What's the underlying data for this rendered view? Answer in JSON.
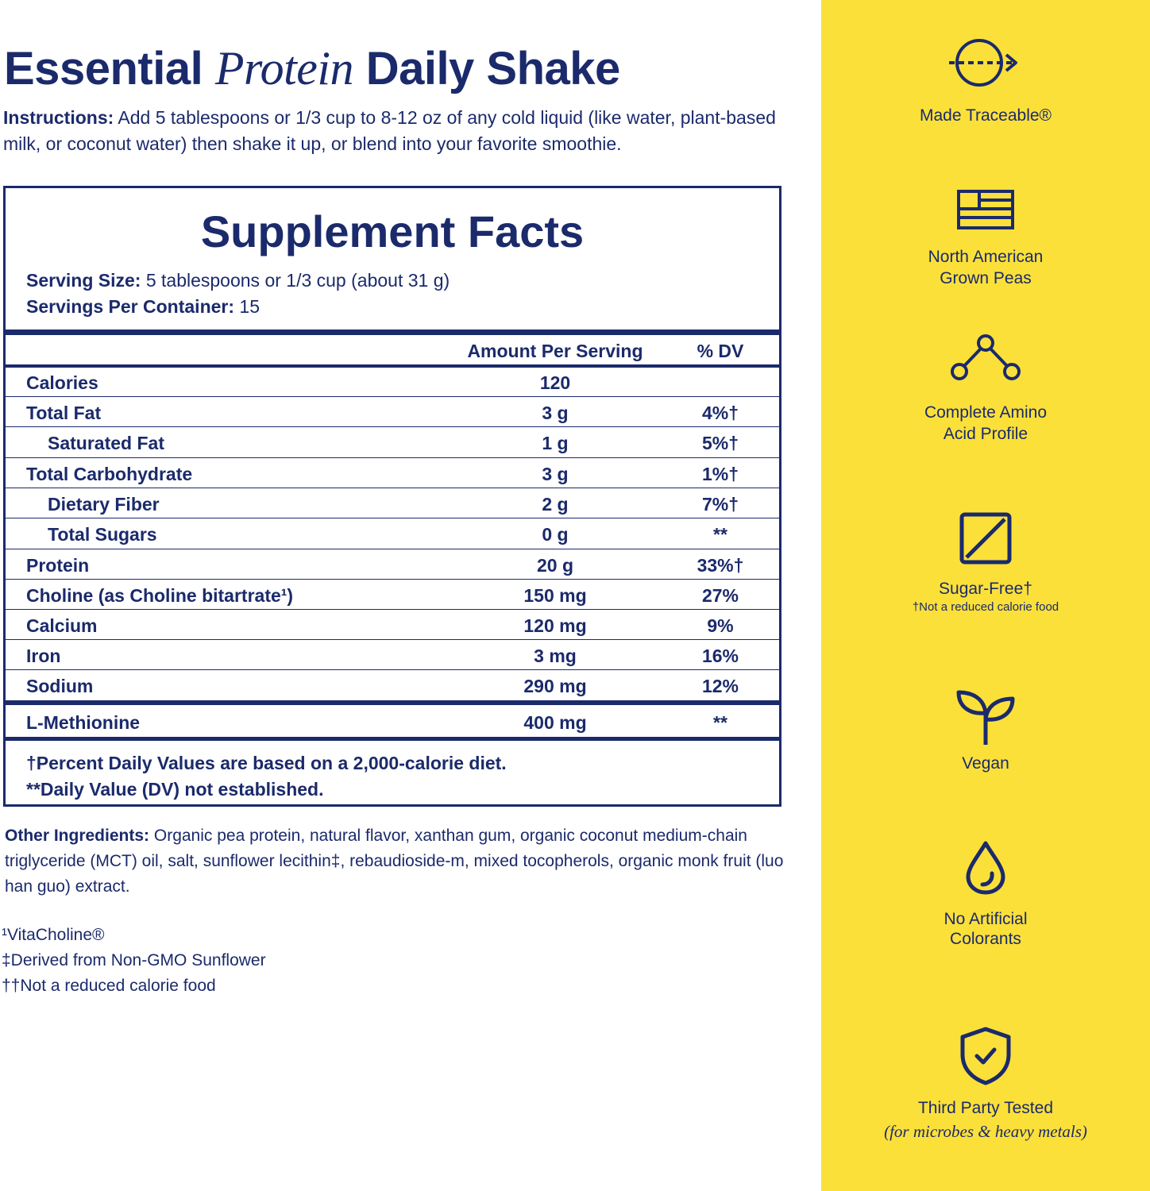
{
  "header": {
    "title_part1": "Essential",
    "title_part2": "Protein",
    "title_part3": "Daily Shake"
  },
  "instructions": {
    "label": "Instructions:",
    "text": "Add 5 tablespoons or 1/3 cup to 8-12 oz of any cold liquid (like water, plant-based milk, or coconut water) then shake it up, or blend into your favorite smoothie."
  },
  "facts": {
    "title": "Supplement Facts",
    "serving_size_label": "Serving Size:",
    "serving_size_value": "5 tablespoons or 1/3 cup (about 31 g)",
    "servings_label": "Servings Per Container:",
    "servings_value": "15",
    "col_amount": "Amount Per Serving",
    "col_dv": "% DV",
    "rows": [
      {
        "name": "Calories",
        "amount": "120",
        "dv": ""
      },
      {
        "name": "Total Fat",
        "amount": "3 g",
        "dv": "4%†"
      },
      {
        "name": "Saturated Fat",
        "amount": "1 g",
        "dv": "5%†"
      },
      {
        "name": "Total Carbohydrate",
        "amount": "3 g",
        "dv": "1%†"
      },
      {
        "name": "Dietary Fiber",
        "amount": "2 g",
        "dv": "7%†"
      },
      {
        "name": "Total Sugars",
        "amount": "0 g",
        "dv": "**"
      },
      {
        "name": "Protein",
        "amount": "20 g",
        "dv": "33%†"
      },
      {
        "name": "Choline (as Choline bitartrate¹)",
        "amount": "150 mg",
        "dv": "27%"
      },
      {
        "name": "Calcium",
        "amount": "120 mg",
        "dv": "9%"
      },
      {
        "name": "Iron",
        "amount": "3 mg",
        "dv": "16%"
      },
      {
        "name": "Sodium",
        "amount": "290 mg",
        "dv": "12%"
      },
      {
        "name": "L-Methionine",
        "amount": "400 mg",
        "dv": "**"
      }
    ],
    "footnote_1": "†Percent Daily Values are based on a 2,000-calorie diet.",
    "footnote_2": "**Daily Value (DV) not established."
  },
  "ingredients": {
    "label": "Other Ingredients:",
    "text": "Organic pea protein, natural flavor, xanthan gum, organic coconut medium-chain triglyceride (MCT) oil, salt, sunflower lecithin‡, rebaudioside-m, mixed tocopherols, organic monk fruit (luo han guo) extract."
  },
  "notes": [
    "¹VitaCholine®",
    "‡Derived from Non-GMO Sunflower",
    "††Not a reduced calorie food"
  ],
  "features": [
    {
      "icon": "traceable-arrow-icon",
      "label": "Made Traceable®"
    },
    {
      "icon": "flag-icon",
      "label_1": "North American",
      "label_2": "Grown Peas"
    },
    {
      "icon": "amino-molecule-icon",
      "label_1": "Complete Amino",
      "label_2": "Acid Profile"
    },
    {
      "icon": "sugar-free-icon",
      "label": "Sugar-Free†",
      "sublabel": "†Not a reduced calorie food"
    },
    {
      "icon": "sprout-icon",
      "label": "Vegan"
    },
    {
      "icon": "droplet-icon",
      "label_1": "No Artificial",
      "label_2": "Colorants"
    },
    {
      "icon": "shield-check-icon",
      "label": "Third Party Tested",
      "sublabel": "(for microbes & heavy metals)"
    }
  ],
  "colors": {
    "navy": "#1b2a6b",
    "yellow": "#fbe03a",
    "white": "#ffffff"
  }
}
